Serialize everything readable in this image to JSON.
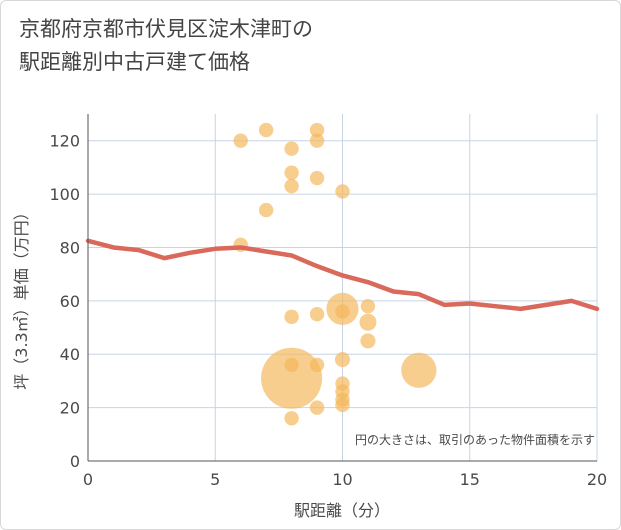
{
  "chart_data": {
    "type": "scatter",
    "title_line1": "京都府京都市伏見区淀木津町の",
    "title_line2": "駅距離別中古戸建て価格",
    "xlabel": "駅距離（分）",
    "ylabel": "坪（3.3㎡）単価（万円）",
    "note": "円の大きさは、取引のあった物件面積を示す",
    "xlim": [
      0,
      20
    ],
    "ylim": [
      0,
      130
    ],
    "xticks": [
      0,
      5,
      10,
      15,
      20
    ],
    "yticks": [
      0,
      20,
      40,
      60,
      80,
      100,
      120
    ],
    "bubble_color": "#f5b75a",
    "line_color": "#d9695a",
    "bubbles": [
      {
        "x": 6,
        "y": 120,
        "size": 1
      },
      {
        "x": 6,
        "y": 81,
        "size": 1
      },
      {
        "x": 7,
        "y": 124,
        "size": 1
      },
      {
        "x": 7,
        "y": 94,
        "size": 1
      },
      {
        "x": 8,
        "y": 117,
        "size": 1
      },
      {
        "x": 8,
        "y": 108,
        "size": 1
      },
      {
        "x": 8,
        "y": 103,
        "size": 1
      },
      {
        "x": 8,
        "y": 54,
        "size": 1
      },
      {
        "x": 8,
        "y": 36,
        "size": 1
      },
      {
        "x": 8,
        "y": 31,
        "size": 18
      },
      {
        "x": 8,
        "y": 16,
        "size": 1
      },
      {
        "x": 9,
        "y": 124,
        "size": 1
      },
      {
        "x": 9,
        "y": 120,
        "size": 1
      },
      {
        "x": 9,
        "y": 106,
        "size": 1
      },
      {
        "x": 9,
        "y": 55,
        "size": 1
      },
      {
        "x": 9,
        "y": 36,
        "size": 1
      },
      {
        "x": 9,
        "y": 20,
        "size": 1
      },
      {
        "x": 10,
        "y": 101,
        "size": 1
      },
      {
        "x": 10,
        "y": 57,
        "size": 5
      },
      {
        "x": 10,
        "y": 56,
        "size": 1
      },
      {
        "x": 10,
        "y": 38,
        "size": 1.1
      },
      {
        "x": 10,
        "y": 29,
        "size": 1
      },
      {
        "x": 10,
        "y": 26,
        "size": 1
      },
      {
        "x": 10,
        "y": 23,
        "size": 1
      },
      {
        "x": 10,
        "y": 21,
        "size": 1
      },
      {
        "x": 11,
        "y": 58,
        "size": 1
      },
      {
        "x": 11,
        "y": 52,
        "size": 1.4
      },
      {
        "x": 11,
        "y": 45,
        "size": 1.1
      },
      {
        "x": 13,
        "y": 34,
        "size": 6
      }
    ],
    "trend": {
      "x": [
        0,
        1,
        2,
        3,
        4,
        5,
        6,
        7,
        8,
        9,
        10,
        11,
        12,
        13,
        14,
        15,
        16,
        17,
        18,
        19,
        20
      ],
      "y": [
        82.5,
        80,
        79,
        76,
        78,
        79.5,
        80,
        78.5,
        77,
        73,
        69.5,
        67,
        63.5,
        62.5,
        58.5,
        59,
        58,
        57,
        58.5,
        60,
        57
      ]
    }
  }
}
